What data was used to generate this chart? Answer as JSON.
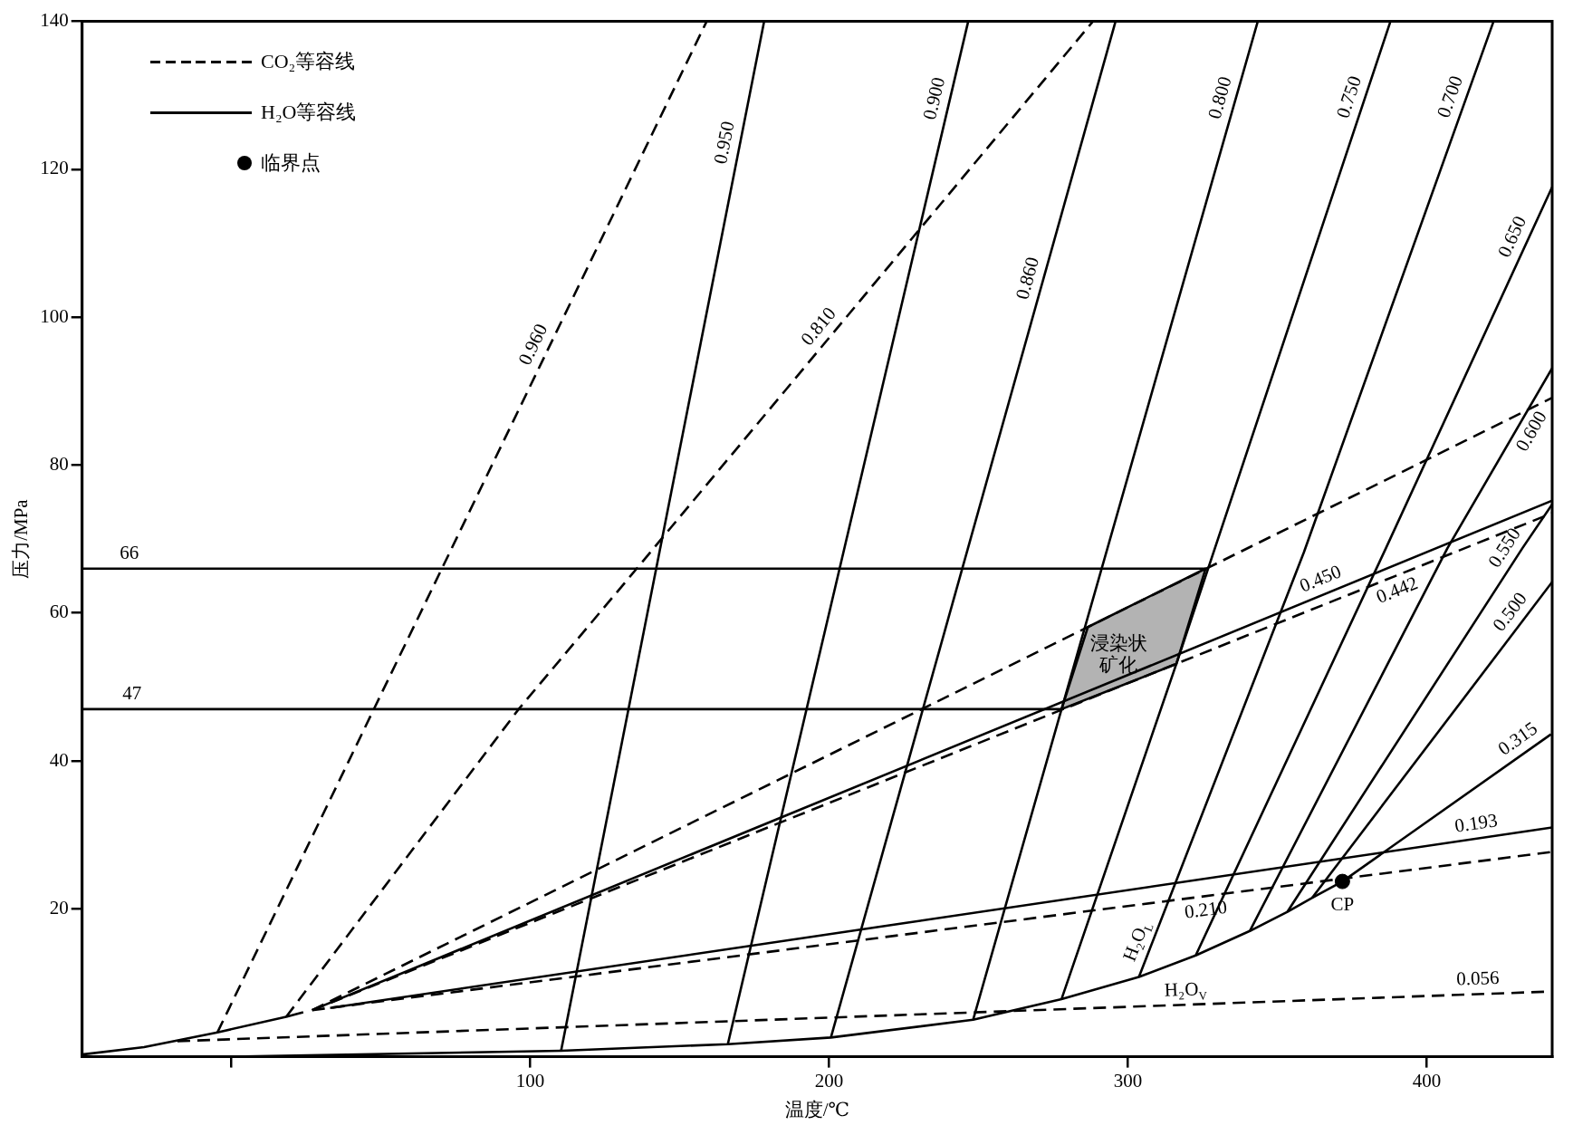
{
  "chart_data": {
    "type": "line",
    "xlabel": "温度/℃",
    "ylabel": "压力/MPa",
    "xlim": [
      -50,
      442
    ],
    "xticks": [
      {
        "value": 0,
        "label": null
      },
      100,
      200,
      300,
      400
    ],
    "ylim": [
      0,
      140
    ],
    "yticks": [
      20,
      40,
      60,
      80,
      100,
      120,
      140
    ],
    "legend": "top left",
    "series": [
      {
        "name": "CO₂等容线",
        "line_style": "dashed",
        "color": "#000000",
        "x": [
          -4.7,
          158.9
        ],
        "values": [
          3.3,
          139.9
        ]
      },
      {
        "line_style": "dashed",
        "color": "#000000",
        "x": [
          18.3,
          96.1,
          135.6,
          288.3
        ],
        "values": [
          5.4,
          47,
          66,
          140
        ]
      },
      {
        "line_style": "dashed",
        "color": "#000000",
        "x": [
          27,
          442
        ],
        "values": [
          6.3,
          89.1
        ]
      },
      {
        "line_style": "dashed",
        "color": "#000000",
        "x": [
          27,
          442
        ],
        "values": [
          6.3,
          73.5
        ]
      },
      {
        "line_style": "dashed",
        "color": "#000000",
        "x": [
          27,
          442
        ],
        "values": [
          6.3,
          27.7
        ]
      },
      {
        "line_style": "dashed",
        "color": "#000000",
        "x": [
          -18.1,
          440.3
        ],
        "values": [
          2.1,
          8.8
        ]
      },
      {
        "name": "H₂O等容线",
        "line_style": "solid",
        "color": "#000000",
        "x": [
          110.3,
          178.2
        ],
        "values": [
          0.8,
          139.9
        ]
      },
      {
        "line_style": "solid",
        "color": "#000000",
        "x": [
          166.1,
          246.5
        ],
        "values": [
          1.7,
          139.9
        ]
      },
      {
        "line_style": "solid",
        "color": "#000000",
        "x": [
          200.6,
          295.8
        ],
        "values": [
          2.6,
          139.9
        ]
      },
      {
        "line_style": "solid",
        "color": "#000000",
        "x": [
          248.2,
          277.8,
          343.4
        ],
        "values": [
          5,
          47,
          139.9
        ]
      },
      {
        "line_style": "solid",
        "color": "#000000",
        "x": [
          277.8,
          316.2,
          387.8
        ],
        "values": [
          7.8,
          53.1,
          139.9
        ]
      },
      {
        "line_style": "solid",
        "color": "#000000",
        "x": [
          303.7,
          358.9,
          422.3
        ],
        "values": [
          10.8,
          68.2,
          139.9
        ]
      },
      {
        "line_style": "solid",
        "color": "#000000",
        "x": [
          322.7,
          386.4,
          442
        ],
        "values": [
          13.7,
          68.8,
          117.6
        ]
      },
      {
        "line_style": "solid",
        "color": "#000000",
        "x": [
          340.8,
          407,
          442
        ],
        "values": [
          17,
          68.8,
          93.1
        ]
      },
      {
        "line_style": "solid",
        "color": "#000000",
        "x": [
          353.4,
          432.1,
          442
        ],
        "values": [
          19.6,
          68.8,
          74.7
        ]
      },
      {
        "line_style": "solid",
        "color": "#000000",
        "x": [
          361.7,
          442
        ],
        "values": [
          21.5,
          64.2
        ]
      },
      {
        "line_style": "solid",
        "color": "#000000",
        "x": [
          371.8,
          441.6
        ],
        "values": [
          23.7,
          43.6
        ]
      },
      {
        "line_style": "solid",
        "color": "#000000",
        "x": [
          27,
          442
        ],
        "values": [
          6.3,
          75.2
        ]
      },
      {
        "line_style": "solid",
        "color": "#000000",
        "x": [
          33,
          442
        ],
        "values": [
          6.6,
          31
        ]
      },
      {
        "line_style": "solid",
        "color": "#000000",
        "x": [
          0,
          110.3,
          166.1,
          200.6,
          248.2,
          277.8,
          303.7,
          322.7,
          340.8,
          353.4,
          361.7,
          371.8
        ],
        "values": [
          0,
          0.8,
          1.7,
          2.6,
          5,
          7.8,
          10.8,
          13.7,
          17,
          19.6,
          21.5,
          23.7
        ]
      },
      {
        "line_style": "solid",
        "color": "#000000",
        "x": [
          -50,
          -29.3,
          -4.7,
          18.3,
          24
        ],
        "values": [
          0.3,
          1.3,
          3.3,
          5.4,
          6
        ]
      },
      {
        "line_style": "solid",
        "color": "#000000",
        "x": [
          -50,
          326
        ],
        "values": [
          66,
          66
        ]
      },
      {
        "line_style": "solid",
        "color": "#000000",
        "x": [
          -50,
          277.8
        ],
        "values": [
          47,
          47
        ]
      },
      {
        "type": "area",
        "line_style": "solid",
        "color": "#b3b3b3",
        "x": [
          277.8,
          286.6,
          326,
          316.2,
          277.8
        ],
        "values": [
          47,
          58.1,
          66,
          53.1,
          47
        ]
      },
      {
        "name": "临界点",
        "type": "scatter",
        "marker": "circle",
        "color": "#000000",
        "x": [
          371.8
        ],
        "values": [
          23.7
        ]
      }
    ],
    "annotations": [
      {
        "text": "0.960",
        "x": 105.6,
        "y": 95.4
      },
      {
        "text": "0.950",
        "x": 170,
        "y": 123.2
      },
      {
        "text": "0.810",
        "x": 200.4,
        "y": 97.4
      },
      {
        "text": "0.900",
        "x": 240.2,
        "y": 129.1
      },
      {
        "text": "0.860",
        "x": 271.4,
        "y": 104.7
      },
      {
        "text": "0.800",
        "x": 335.8,
        "y": 129.1
      },
      {
        "text": "0.750",
        "x": 378.9,
        "y": 129.1
      },
      {
        "text": "0.700",
        "x": 412.7,
        "y": 129.1
      },
      {
        "text": "0.650",
        "x": 433.3,
        "y": 110
      },
      {
        "text": "0.600",
        "x": 431.1,
        "y": 85.5
      },
      {
        "text": "0.550",
        "x": 430.4,
        "y": 67.7
      },
      {
        "text": "0.500",
        "x": 432,
        "y": 58.9
      },
      {
        "text": "0.450",
        "x": 366.4,
        "y": 62.7
      },
      {
        "text": "0.442",
        "x": 388.4,
        "y": 64.8
      },
      {
        "text": "0.315",
        "x": 433.5,
        "y": 41.3
      },
      {
        "text": "0.193",
        "x": 417.3,
        "y": 29.5
      },
      {
        "text": "0.210",
        "x": 325.5,
        "y": 21.7
      },
      {
        "text": "0.056",
        "x": 417.3,
        "y": 8.5
      },
      {
        "text": "H₂O$_{L}$",
        "x": 307.6,
        "y": 14.9
      },
      {
        "text": "H₂O$_{V}$",
        "x": 319.5,
        "y": 7
      },
      {
        "text": "CP",
        "x": 371.8,
        "y": 23.7
      },
      {
        "text": "66",
        "x": -34.2,
        "y": 66
      },
      {
        "text": "47",
        "x": -33.3,
        "y": 47
      },
      "浸染状矿化"
    ]
  }
}
